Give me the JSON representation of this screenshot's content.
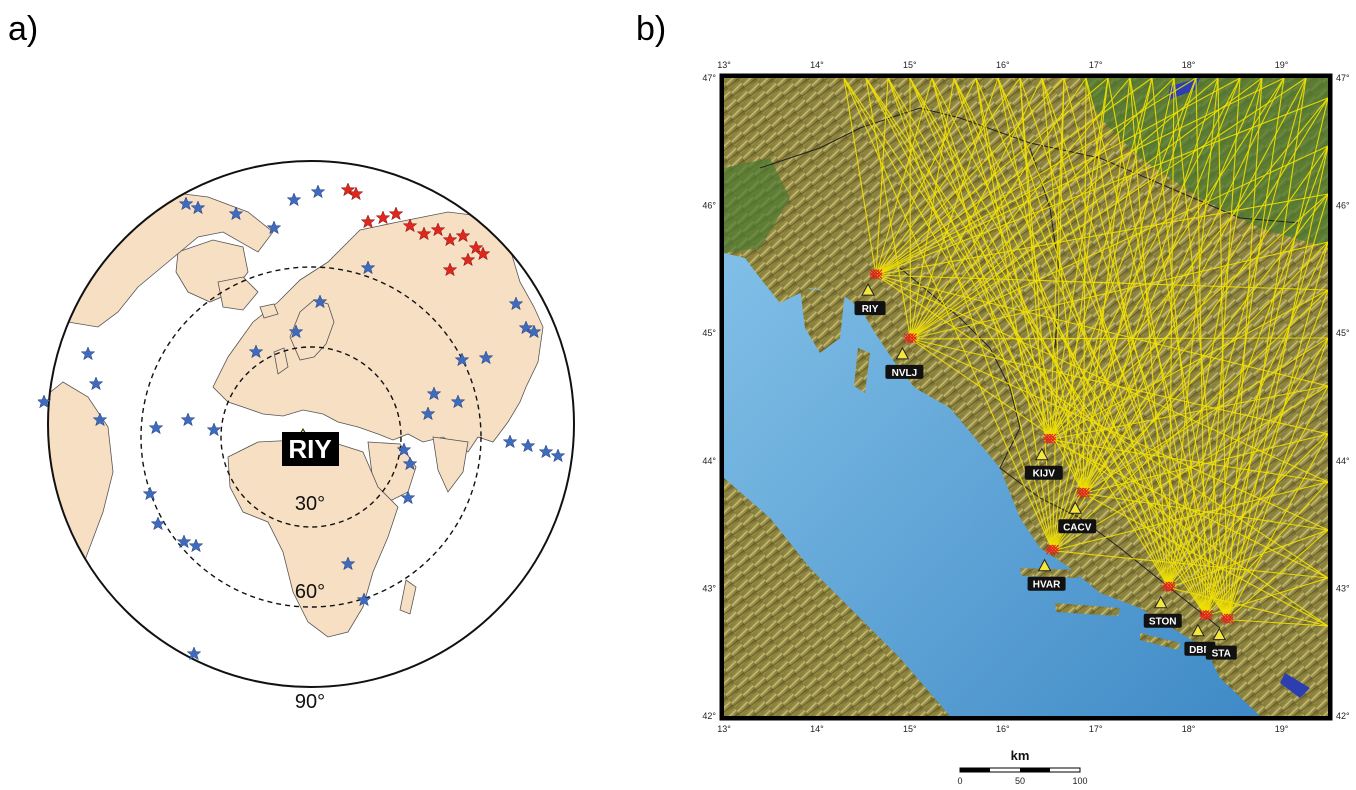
{
  "panel_a": {
    "label": "a)",
    "station": "RIY",
    "rings": [
      "30°",
      "60°",
      "90°"
    ]
  },
  "panel_b": {
    "label": "b)",
    "lon_ticks": [
      "13°",
      "14°",
      "15°",
      "16°",
      "17°",
      "18°",
      "19°"
    ],
    "lat_ticks": [
      "47°",
      "46°",
      "45°",
      "44°",
      "43°",
      "42°"
    ],
    "stations": [
      {
        "code": "RIY",
        "lon": 14.55,
        "lat": 45.33
      },
      {
        "code": "NVLJ",
        "lon": 14.92,
        "lat": 44.83
      },
      {
        "code": "KIJV",
        "lon": 16.42,
        "lat": 44.04
      },
      {
        "code": "CACV",
        "lon": 16.78,
        "lat": 43.62
      },
      {
        "code": "HVAR",
        "lon": 16.45,
        "lat": 43.17
      },
      {
        "code": "STON",
        "lon": 17.7,
        "lat": 42.88
      },
      {
        "code": "DBR",
        "lon": 18.1,
        "lat": 42.66
      },
      {
        "code": "STA",
        "lon": 18.33,
        "lat": 42.63
      }
    ],
    "scale": {
      "unit": "km",
      "ticks": [
        "0",
        "50",
        "100"
      ]
    }
  },
  "colors": {
    "land": "#f7dfc3",
    "sea": "#5aa6d6",
    "ray": "#f2e200",
    "event_near": "#e0261d",
    "event_far": "#3f6bbf",
    "station": "#f4e63a"
  }
}
